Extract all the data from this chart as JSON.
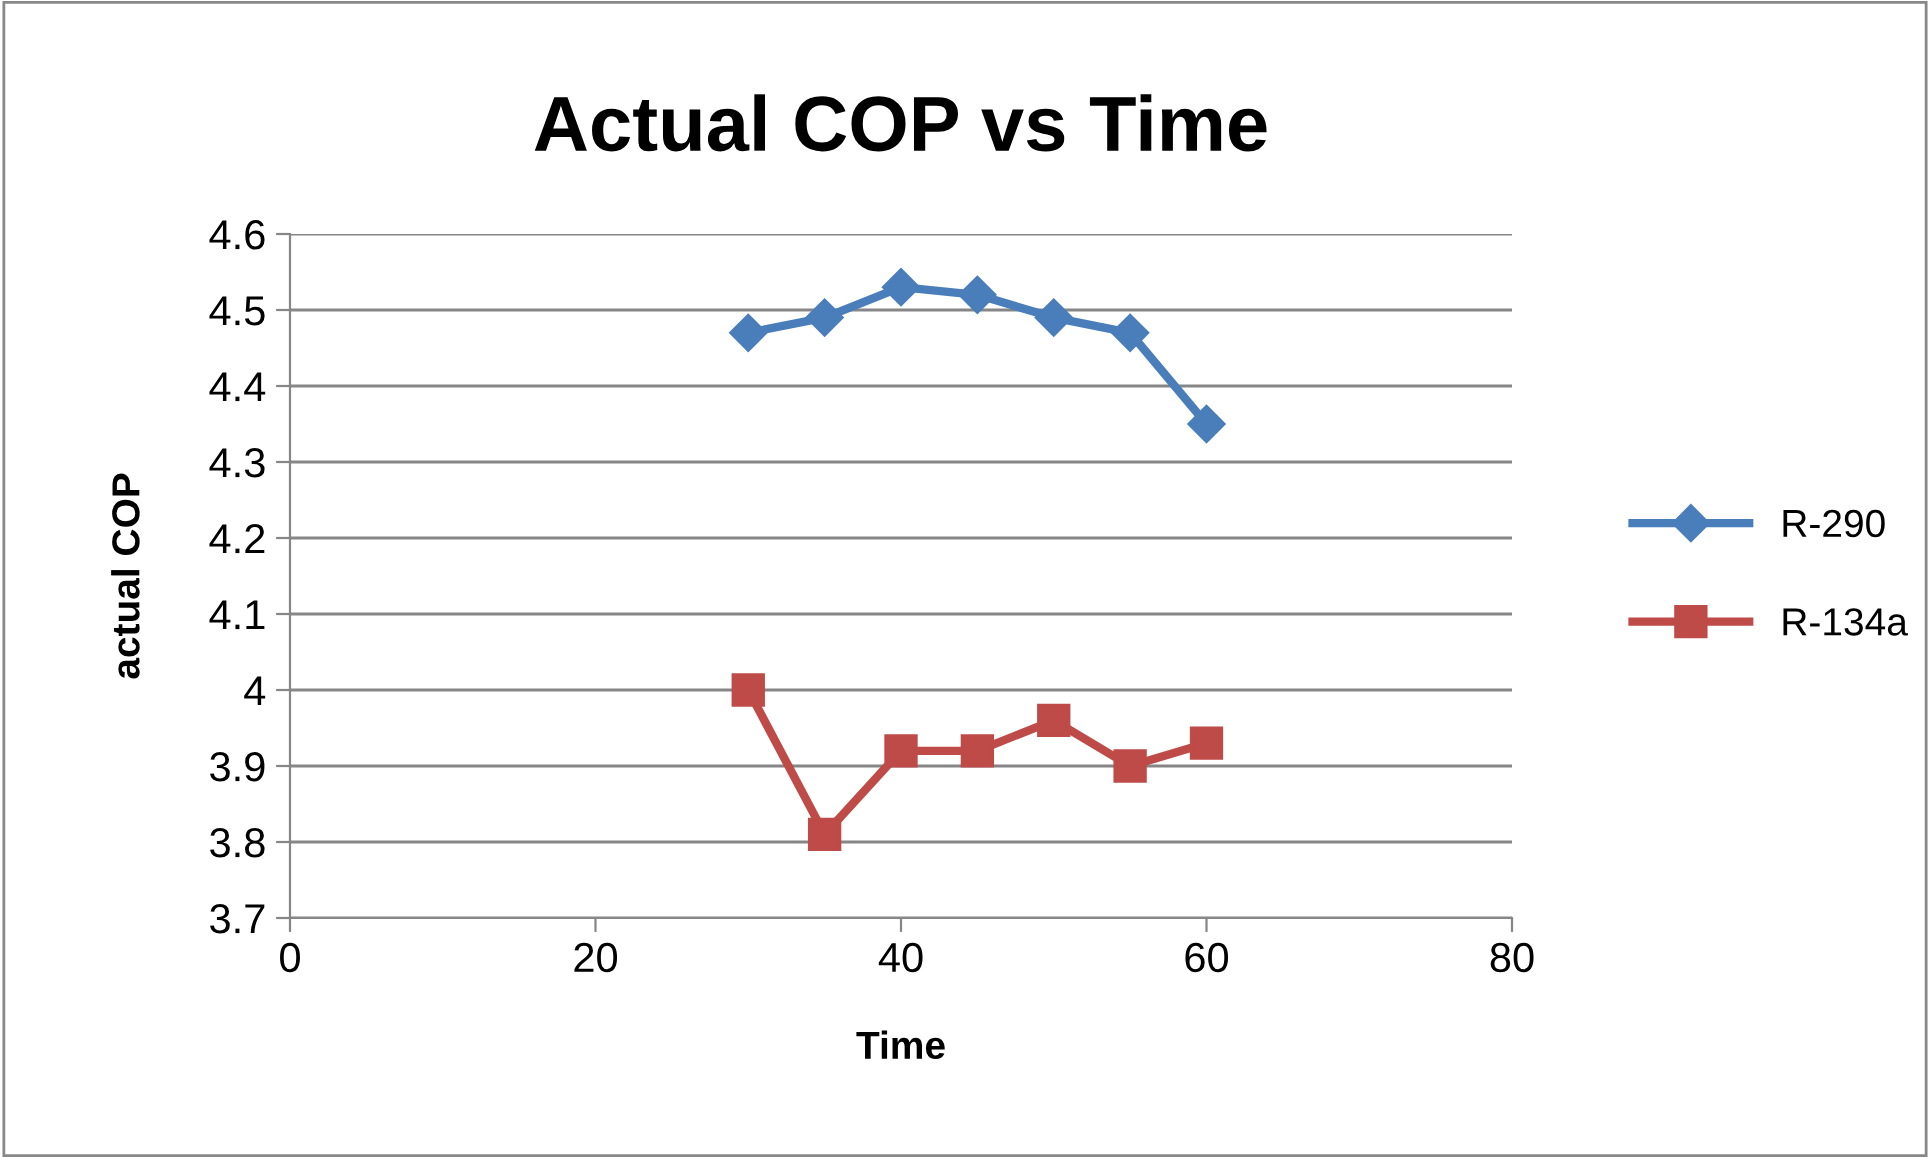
{
  "chart_data": {
    "type": "line",
    "title": "Actual COP vs Time",
    "xlabel": "Time",
    "ylabel": "actual COP",
    "x": [
      30,
      35,
      40,
      45,
      50,
      55,
      60
    ],
    "series": [
      {
        "name": "R-290",
        "color": "#4a7ebb",
        "marker": "diamond",
        "values": [
          4.47,
          4.49,
          4.53,
          4.52,
          4.49,
          4.47,
          4.35
        ]
      },
      {
        "name": "R-134a",
        "color": "#be4b48",
        "marker": "square",
        "values": [
          4.0,
          3.81,
          3.92,
          3.92,
          3.96,
          3.9,
          3.93
        ]
      }
    ],
    "xlim": [
      0,
      80
    ],
    "xticks": [
      0,
      20,
      40,
      60,
      80
    ],
    "ylim": [
      3.7,
      4.6
    ],
    "yticks": [
      {
        "value": 3.7,
        "label": "3.7"
      },
      {
        "value": 3.8,
        "label": "3.8"
      },
      {
        "value": 3.9,
        "label": "3.9"
      },
      {
        "value": 4.0,
        "label": "4"
      },
      {
        "value": 4.1,
        "label": "4.1"
      },
      {
        "value": 4.2,
        "label": "4.2"
      },
      {
        "value": 4.3,
        "label": "4.3"
      },
      {
        "value": 4.4,
        "label": "4.4"
      },
      {
        "value": 4.5,
        "label": "4.5"
      },
      {
        "value": 4.6,
        "label": "4.6"
      }
    ],
    "grid": "y",
    "legend": "right",
    "line_style": "solid"
  }
}
